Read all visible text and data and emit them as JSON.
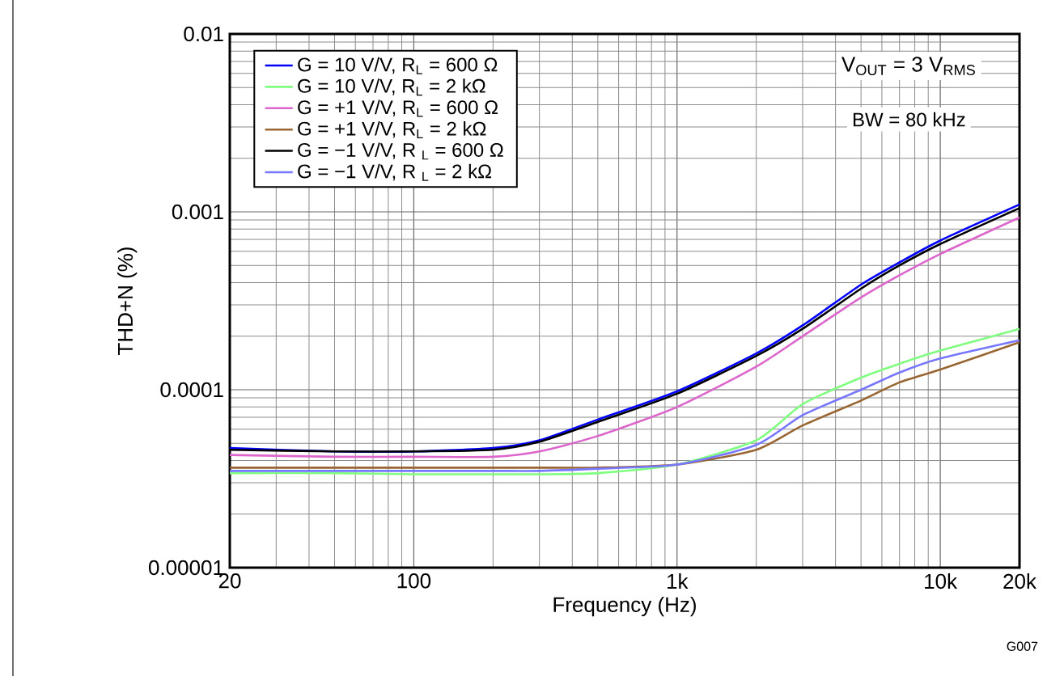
{
  "chart_data": {
    "type": "line",
    "xlabel": "Frequency (Hz)",
    "ylabel": "THD+N (%)",
    "log": "xy",
    "grid": true,
    "legend": "top left",
    "xlim": [
      20,
      20000
    ],
    "ylim": [
      1e-05,
      0.01
    ],
    "xticks": [
      20,
      100,
      {
        "value": 1000,
        "label": "1k"
      },
      {
        "value": 10000,
        "label": "10k"
      },
      {
        "value": 20000,
        "label": "20k"
      }
    ],
    "yticks": [
      {
        "value": 1e-05,
        "label": "0.00001"
      },
      {
        "value": 0.0001,
        "label": "0.0001"
      },
      {
        "value": 0.001,
        "label": "0.001"
      },
      {
        "value": 0.01,
        "label": "0.01"
      }
    ],
    "x": [
      20,
      50,
      100,
      200,
      300,
      500,
      1000,
      2000,
      3000,
      5000,
      7000,
      10000,
      20000
    ],
    "annotations": [
      "V$_{OUT}$ = 3 V$_{RMS}$",
      "BW = 80 kHz",
      "G007"
    ],
    "series": [
      {
        "name": "G = 10 V/V, R$_{L}$ = 600 Ω",
        "color": "#0000ff",
        "values": [
          4.7e-05,
          4.5e-05,
          4.5e-05,
          4.7e-05,
          5.2e-05,
          6.8e-05,
          9.8e-05,
          0.00016,
          0.00023,
          0.00039,
          0.00052,
          0.00069,
          0.0011
        ]
      },
      {
        "name": "G = 10 V/V, R$_{L}$ = 2 kΩ",
        "color": "#80ff80",
        "values": [
          3.4e-05,
          3.4e-05,
          3.35e-05,
          3.35e-05,
          3.35e-05,
          3.4e-05,
          3.8e-05,
          5.2e-05,
          8.3e-05,
          0.000117,
          0.00014,
          0.000166,
          0.00022
        ]
      },
      {
        "name": "G = +1 V/V, R$_{L}$ = 600 Ω",
        "color": "#dd66cc",
        "values": [
          4.3e-05,
          4.2e-05,
          4.2e-05,
          4.2e-05,
          4.5e-05,
          5.5e-05,
          8e-05,
          0.000135,
          0.0002,
          0.00033,
          0.00044,
          0.00058,
          0.00093
        ]
      },
      {
        "name": "G = +1 V/V, R$_{L}$ = 2 kΩ",
        "color": "#996633",
        "values": [
          3.65e-05,
          3.65e-05,
          3.65e-05,
          3.65e-05,
          3.65e-05,
          3.65e-05,
          3.8e-05,
          4.6e-05,
          6.3e-05,
          8.7e-05,
          0.00011,
          0.00013,
          0.000185
        ]
      },
      {
        "name": "G = −1 V/V, R $_{L}$ = 600 Ω",
        "color": "#000000",
        "values": [
          4.6e-05,
          4.5e-05,
          4.5e-05,
          4.6e-05,
          5.1e-05,
          6.6e-05,
          9.5e-05,
          0.000155,
          0.00022,
          0.00037,
          0.0005,
          0.00066,
          0.00105
        ]
      },
      {
        "name": "G = −1 V/V, R $_{L}$ = 2 kΩ",
        "color": "#7777ff",
        "values": [
          3.5e-05,
          3.5e-05,
          3.5e-05,
          3.5e-05,
          3.5e-05,
          3.6e-05,
          3.8e-05,
          4.9e-05,
          7.2e-05,
          0.0001,
          0.000125,
          0.00015,
          0.00019
        ]
      }
    ]
  }
}
